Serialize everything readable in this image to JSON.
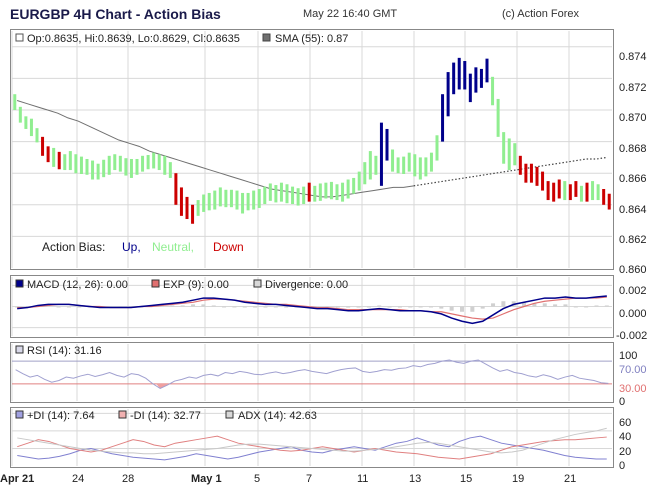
{
  "header": {
    "title": "EURGBP 4H Chart - Action Bias",
    "datetime": "May 22 16:40 GMT",
    "credit": "(c) Action Forex"
  },
  "colors": {
    "up": "#00008b",
    "neutral": "#90ee90",
    "down": "#cc0000",
    "sma": "#707070",
    "macd": "#00008b",
    "exp": "#e07070",
    "divergence": "#d0d0d0",
    "rsi": "#a0a0d0",
    "rsi_level": "#e08080",
    "plus_di": "#8080d0",
    "minus_di": "#e08080",
    "adx": "#c8c8c8",
    "grid": "#d8d8d8",
    "border": "#888888"
  },
  "chart_data": [
    {
      "type": "ohlc",
      "panel": "price",
      "ylim": [
        0.86,
        0.875
      ],
      "y_ticks": [
        "0.874",
        "0.872",
        "0.870",
        "0.868",
        "0.866",
        "0.864",
        "0.862",
        "0.860"
      ],
      "x_ticks": [
        "Apr 21",
        "24",
        "28",
        "May 1",
        "5",
        "7",
        "11",
        "13",
        "15",
        "19",
        "21"
      ],
      "info": {
        "ohlc_text": "Op:0.8635, Hi:0.8639, Lo:0.8629, Cl:0.8635",
        "sma_text": "SMA (55): 0.87"
      },
      "legend": {
        "label": "Action Bias:",
        "up": "Up,",
        "neutral": "Neutral,",
        "down": "Down"
      },
      "bars_mid": [
        0.8705,
        0.8697,
        0.8692,
        0.8689,
        0.8684,
        0.8677,
        0.8672,
        0.867,
        0.8668,
        0.8667,
        0.8668,
        0.8666,
        0.8665,
        0.8664,
        0.8662,
        0.8661,
        0.8663,
        0.8665,
        0.8667,
        0.8666,
        0.8664,
        0.8663,
        0.8664,
        0.8666,
        0.8667,
        0.8668,
        0.8667,
        0.8665,
        0.8662,
        0.865,
        0.8642,
        0.8638,
        0.8634,
        0.8638,
        0.8641,
        0.8642,
        0.8643,
        0.8645,
        0.8644,
        0.8644,
        0.8643,
        0.8641,
        0.8642,
        0.8643,
        0.8644,
        0.8646,
        0.8648,
        0.8647,
        0.8648,
        0.8647,
        0.8646,
        0.8645,
        0.8646,
        0.8648,
        0.8647,
        0.8648,
        0.8649,
        0.8649,
        0.8648,
        0.8648,
        0.865,
        0.8652,
        0.8655,
        0.866,
        0.8665,
        0.8665,
        0.8672,
        0.8678,
        0.8668,
        0.8665,
        0.8665,
        0.8667,
        0.8665,
        0.8663,
        0.8664,
        0.8667,
        0.8676,
        0.8695,
        0.871,
        0.872,
        0.8723,
        0.8722,
        0.8714,
        0.8719,
        0.872,
        0.8725,
        0.8712,
        0.8695,
        0.8676,
        0.8672,
        0.8672,
        0.8665,
        0.866,
        0.866,
        0.8658,
        0.8655,
        0.8649,
        0.8648,
        0.865,
        0.8649,
        0.8648,
        0.865,
        0.8647,
        0.8648,
        0.8649,
        0.8648,
        0.8645,
        0.8642
      ],
      "bars_range": [
        0.001,
        0.001,
        0.0008,
        0.0011,
        0.0009,
        0.0012,
        0.001,
        0.0012,
        0.0011,
        0.001,
        0.0012,
        0.0012,
        0.0011,
        0.001,
        0.0012,
        0.001,
        0.0011,
        0.0012,
        0.001,
        0.001,
        0.0011,
        0.0012,
        0.001,
        0.001,
        0.0009,
        0.001,
        0.001,
        0.0012,
        0.001,
        0.002,
        0.0018,
        0.0014,
        0.0012,
        0.001,
        0.0011,
        0.0011,
        0.0012,
        0.0012,
        0.0011,
        0.0011,
        0.0012,
        0.0013,
        0.0011,
        0.0012,
        0.0012,
        0.0011,
        0.0011,
        0.0011,
        0.0012,
        0.0012,
        0.0011,
        0.0011,
        0.0011,
        0.0012,
        0.001,
        0.0011,
        0.001,
        0.0011,
        0.001,
        0.0012,
        0.0012,
        0.001,
        0.0012,
        0.0014,
        0.0018,
        0.0012,
        0.004,
        0.002,
        0.0014,
        0.001,
        0.0011,
        0.0012,
        0.0014,
        0.0014,
        0.0012,
        0.0012,
        0.0016,
        0.003,
        0.0028,
        0.002,
        0.002,
        0.0018,
        0.0018,
        0.0016,
        0.0012,
        0.0015,
        0.0018,
        0.0024,
        0.002,
        0.002,
        0.0014,
        0.0012,
        0.0012,
        0.0012,
        0.0012,
        0.0012,
        0.0012,
        0.0012,
        0.0012,
        0.0012,
        0.001,
        0.001,
        0.001,
        0.0012,
        0.0012,
        0.001,
        0.001,
        0.001
      ],
      "bias": [
        "n",
        "n",
        "n",
        "n",
        "n",
        "d",
        "d",
        "n",
        "d",
        "n",
        "n",
        "n",
        "n",
        "n",
        "n",
        "n",
        "n",
        "n",
        "n",
        "n",
        "n",
        "n",
        "n",
        "n",
        "n",
        "n",
        "n",
        "n",
        "n",
        "d",
        "d",
        "d",
        "d",
        "n",
        "n",
        "n",
        "n",
        "n",
        "n",
        "n",
        "n",
        "n",
        "n",
        "n",
        "n",
        "n",
        "n",
        "n",
        "n",
        "n",
        "n",
        "n",
        "n",
        "d",
        "n",
        "n",
        "n",
        "n",
        "n",
        "n",
        "n",
        "n",
        "n",
        "n",
        "n",
        "n",
        "u",
        "u",
        "n",
        "n",
        "n",
        "n",
        "n",
        "n",
        "n",
        "n",
        "n",
        "u",
        "u",
        "u",
        "u",
        "u",
        "u",
        "u",
        "u",
        "u",
        "n",
        "n",
        "n",
        "n",
        "n",
        "d",
        "d",
        "d",
        "d",
        "d",
        "d",
        "d",
        "d",
        "n",
        "d",
        "d",
        "n",
        "d",
        "n",
        "n",
        "d",
        "d"
      ],
      "sma": [
        0.8706,
        0.8704,
        0.8702,
        0.87,
        0.8698,
        0.8695,
        0.8693,
        0.869,
        0.8687,
        0.8684,
        0.8681,
        0.8679,
        0.8677,
        0.8674,
        0.8672,
        0.867,
        0.8668,
        0.8666,
        0.8664,
        0.8662,
        0.866,
        0.8658,
        0.8656,
        0.8654,
        0.8652,
        0.865,
        0.8649,
        0.8648,
        0.8647,
        0.8646,
        0.8645,
        0.8645,
        0.8646,
        0.8647,
        0.8648,
        0.8649,
        0.865,
        0.8651,
        0.8651,
        0.8652,
        0.8653,
        0.8654,
        0.8655,
        0.8656,
        0.8657,
        0.8658,
        0.8659,
        0.866,
        0.8661,
        0.8662,
        0.8663,
        0.8664,
        0.8665,
        0.8666,
        0.8667,
        0.8668,
        0.8669,
        0.8669,
        0.867
      ]
    },
    {
      "type": "line",
      "panel": "macd",
      "ylim": [
        -0.0028,
        0.0028
      ],
      "y_ticks": [
        "0.002",
        "0.000",
        "-0.002"
      ],
      "info": {
        "macd_text": "MACD (12, 26): 0.00",
        "exp_text": "EXP (9): 0.00",
        "divergence_text": "Divergence: 0.00"
      },
      "series": [
        {
          "key": "macd",
          "values": [
            -0.0002,
            -0.0001,
            0.0001,
            0.0002,
            0.0002,
            0.0002,
            0.0001,
            0.0,
            -0.0001,
            -0.0001,
            -0.0001,
            -0.0001,
            0.0,
            0.0001,
            0.0002,
            0.0003,
            0.0004,
            0.0006,
            0.0008,
            0.0008,
            0.0007,
            0.0006,
            0.0004,
            0.0003,
            0.0002,
            0.0002,
            0.0001,
            0.0,
            -0.0001,
            -0.0002,
            -0.0002,
            -0.0003,
            -0.0004,
            -0.0004,
            -0.0003,
            -0.0002,
            -0.0003,
            -0.0004,
            -0.0004,
            -0.0004,
            -0.0005,
            -0.0007,
            -0.0011,
            -0.0014,
            -0.0016,
            -0.0014,
            -0.0008,
            -0.0002,
            0.0002,
            0.0004,
            0.0006,
            0.0008,
            0.0008,
            0.0009,
            0.0008,
            0.0008,
            0.0009,
            0.001
          ]
        },
        {
          "key": "exp",
          "values": [
            -0.0001,
            -0.0001,
            0.0,
            0.0001,
            0.0002,
            0.0002,
            0.0001,
            0.0,
            0.0,
            -0.0001,
            -0.0001,
            -0.0001,
            0.0,
            0.0,
            0.0001,
            0.0002,
            0.0003,
            0.0004,
            0.0006,
            0.0007,
            0.0007,
            0.0006,
            0.0005,
            0.0004,
            0.0003,
            0.0002,
            0.0002,
            0.0001,
            0.0,
            -0.0001,
            -0.0001,
            -0.0002,
            -0.0003,
            -0.0003,
            -0.0003,
            -0.0003,
            -0.0003,
            -0.0003,
            -0.0004,
            -0.0004,
            -0.0005,
            -0.0005,
            -0.0007,
            -0.0009,
            -0.0011,
            -0.0012,
            -0.0011,
            -0.0007,
            -0.0003,
            0.0,
            0.0003,
            0.0005,
            0.0006,
            0.0007,
            0.0008,
            0.0008,
            0.0008,
            0.0009
          ]
        },
        {
          "key": "divergence",
          "values": [
            -0.0001,
            0.0,
            0.0001,
            0.0001,
            0.0,
            0.0,
            0.0,
            0.0,
            -0.0001,
            0.0,
            0.0,
            0.0,
            0.0,
            0.0001,
            0.0001,
            0.0001,
            0.0001,
            0.0002,
            0.0002,
            0.0001,
            0.0,
            0.0,
            -0.0001,
            -0.0001,
            -0.0001,
            0.0,
            -0.0001,
            -0.0001,
            -0.0001,
            -0.0001,
            -0.0001,
            -0.0001,
            -0.0001,
            -0.0001,
            0.0,
            0.0001,
            0.0,
            -0.0001,
            0.0,
            0.0,
            0.0,
            -0.0002,
            -0.0004,
            -0.0005,
            -0.0005,
            -0.0002,
            0.0003,
            0.0005,
            0.0005,
            0.0004,
            0.0003,
            0.0003,
            0.0002,
            0.0002,
            0.0,
            0.0,
            0.0001,
            0.0001
          ]
        }
      ]
    },
    {
      "type": "line",
      "panel": "rsi",
      "ylim": [
        0,
        100
      ],
      "y_ticks": [
        "100",
        "70.00",
        "30.00",
        "0"
      ],
      "levels": [
        70,
        30
      ],
      "info": {
        "rsi_text": "RSI (14): 31.16"
      },
      "series": [
        {
          "key": "rsi",
          "values": [
            55,
            48,
            42,
            45,
            38,
            33,
            36,
            42,
            40,
            44,
            47,
            43,
            46,
            50,
            45,
            42,
            48,
            46,
            40,
            30,
            22,
            28,
            35,
            38,
            42,
            40,
            45,
            47,
            44,
            50,
            48,
            52,
            50,
            47,
            46,
            49,
            51,
            48,
            50,
            53,
            55,
            52,
            50,
            48,
            52,
            55,
            57,
            58,
            52,
            50,
            52,
            55,
            54,
            57,
            58,
            62,
            60,
            64,
            66,
            70,
            72,
            68,
            66,
            70,
            72,
            65,
            58,
            52,
            55,
            50,
            48,
            44,
            42,
            46,
            43,
            38,
            42,
            45,
            40,
            38,
            36,
            32,
            31
          ]
        }
      ]
    },
    {
      "type": "line",
      "panel": "dmi",
      "ylim": [
        0,
        65
      ],
      "y_ticks": [
        "60",
        "40",
        "20",
        "0"
      ],
      "info": {
        "plus_di_text": "+DI (14): 7.64",
        "minus_di_text": "-DI (14): 32.77",
        "adx_text": "ADX (14): 42.63"
      },
      "series": [
        {
          "key": "plus_di",
          "values": [
            12,
            10,
            8,
            9,
            11,
            14,
            18,
            20,
            17,
            14,
            12,
            10,
            9,
            8,
            7,
            9,
            11,
            14,
            12,
            10,
            8,
            10,
            13,
            16,
            18,
            20,
            22,
            18,
            16,
            15,
            18,
            20,
            22,
            20,
            18,
            22,
            26,
            28,
            32,
            28,
            24,
            22,
            28,
            32,
            34,
            30,
            26,
            24,
            22,
            20,
            18,
            15,
            12,
            10,
            9,
            8,
            8
          ]
        },
        {
          "key": "minus_di",
          "values": [
            22,
            26,
            30,
            28,
            24,
            20,
            18,
            16,
            18,
            22,
            26,
            30,
            28,
            24,
            22,
            26,
            28,
            30,
            32,
            34,
            30,
            26,
            24,
            22,
            20,
            18,
            17,
            18,
            20,
            22,
            20,
            18,
            16,
            18,
            20,
            18,
            16,
            15,
            14,
            12,
            10,
            9,
            8,
            10,
            12,
            14,
            18,
            22,
            24,
            26,
            28,
            29,
            30,
            30,
            31,
            32,
            33
          ]
        },
        {
          "key": "adx",
          "values": [
            32,
            30,
            28,
            26,
            24,
            22,
            20,
            18,
            17,
            16,
            15,
            15,
            14,
            14,
            15,
            16,
            17,
            18,
            19,
            20,
            22,
            24,
            25,
            25,
            24,
            23,
            22,
            21,
            20,
            19,
            18,
            17,
            17,
            18,
            19,
            20,
            22,
            24,
            26,
            27,
            26,
            24,
            22,
            20,
            18,
            16,
            15,
            16,
            18,
            22,
            26,
            30,
            33,
            36,
            38,
            40,
            43
          ]
        }
      ]
    }
  ]
}
